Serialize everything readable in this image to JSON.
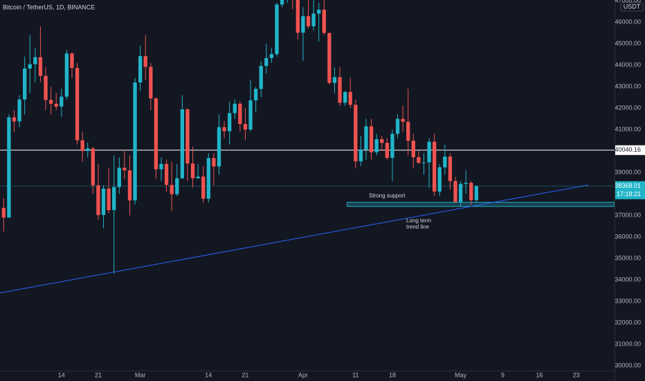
{
  "chart_data": {
    "type": "candlestick",
    "title": "Bitcoin / TetherUS, 1D, BINANCE",
    "currency": "USDT",
    "up_color": "#22b5c9",
    "down_color": "#ef5350",
    "open": [
      37350,
      36900,
      41570,
      41380,
      42400,
      43840,
      44040,
      44370,
      43500,
      42380,
      42200,
      42070,
      42530,
      44540,
      43870,
      40500,
      40000,
      40120,
      38400,
      37020,
      38250,
      37250,
      38320,
      39220,
      39100,
      37700,
      43190,
      44420,
      43920,
      42450,
      39150,
      39400,
      38420,
      37990,
      38730,
      41940,
      39420,
      38730,
      38810,
      37780,
      39670,
      39280,
      41110,
      40920,
      41760,
      42200,
      41260,
      41000,
      42360,
      42890,
      43960,
      44330,
      44510,
      46820,
      47120,
      47430,
      47060,
      45510,
      46280,
      45810,
      46400,
      46580,
      45500,
      43170,
      43440,
      42250,
      42750,
      42150,
      39520,
      40070,
      41150,
      39940,
      40550,
      40380,
      39680,
      40800,
      41500,
      41360,
      40480,
      39710,
      39450,
      39470,
      40430,
      38110,
      39240,
      39740,
      38600,
      37630,
      38470,
      38520,
      37710
    ],
    "high": [
      37800,
      41700,
      41900,
      42600,
      44400,
      45400,
      44800,
      45800,
      43900,
      43000,
      42700,
      42900,
      44700,
      44600,
      44100,
      40900,
      40400,
      40200,
      39400,
      38400,
      39200,
      39800,
      39700,
      40000,
      39800,
      43400,
      44900,
      45400,
      44100,
      42500,
      39700,
      39600,
      39500,
      39400,
      42600,
      42000,
      40200,
      39400,
      39300,
      39900,
      39900,
      41700,
      41400,
      42300,
      42400,
      42300,
      42000,
      43300,
      43000,
      44200,
      45000,
      44800,
      46900,
      48100,
      48200,
      47700,
      47600,
      46700,
      47200,
      47400,
      46900,
      47200,
      45500,
      43900,
      43900,
      42800,
      43400,
      42400,
      40700,
      41500,
      41500,
      40800,
      40700,
      40600,
      41000,
      41700,
      42100,
      42900,
      40800,
      40000,
      39900,
      40600,
      40800,
      39400,
      40300,
      39900,
      38800,
      38600,
      39100,
      38600,
      38400
    ],
    "low": [
      36250,
      36900,
      40900,
      41100,
      41700,
      42700,
      43200,
      43200,
      41900,
      41700,
      41900,
      41600,
      42400,
      43400,
      40300,
      39500,
      39700,
      38000,
      36800,
      36400,
      37100,
      34300,
      38000,
      38700,
      37000,
      37500,
      42800,
      43300,
      41900,
      38700,
      38600,
      38100,
      37200,
      37900,
      38700,
      38600,
      38300,
      38700,
      37600,
      37600,
      38400,
      38900,
      40600,
      40300,
      41500,
      40900,
      40500,
      40900,
      41800,
      42500,
      43600,
      44100,
      44400,
      46700,
      46900,
      46600,
      45200,
      44200,
      45700,
      45600,
      45100,
      45400,
      43100,
      42700,
      42100,
      42100,
      42000,
      39200,
      39300,
      39600,
      39600,
      39800,
      40000,
      39600,
      38600,
      40600,
      40900,
      39800,
      39200,
      39400,
      38900,
      38300,
      37900,
      37900,
      38900,
      38200,
      37600,
      37400,
      38000,
      37500,
      37600
    ],
    "close": [
      36900,
      41570,
      41380,
      42400,
      43840,
      44040,
      44370,
      43500,
      42380,
      42200,
      42070,
      42530,
      44540,
      43870,
      40500,
      40000,
      40120,
      38400,
      37020,
      38250,
      37250,
      38320,
      39220,
      39100,
      37700,
      43190,
      44420,
      43920,
      42450,
      39150,
      39400,
      38420,
      37990,
      38730,
      41940,
      39420,
      38730,
      38810,
      37780,
      39670,
      39280,
      41110,
      40920,
      41760,
      42200,
      41260,
      41000,
      42360,
      42890,
      43960,
      44330,
      44510,
      46820,
      47120,
      47430,
      47060,
      45510,
      46280,
      45810,
      46400,
      46580,
      45500,
      43170,
      43440,
      42250,
      42750,
      42150,
      39520,
      40070,
      41150,
      39940,
      40550,
      40380,
      39680,
      40800,
      41500,
      41360,
      40480,
      39710,
      39450,
      39470,
      40430,
      38110,
      39240,
      39740,
      38600,
      37630,
      38470,
      38520,
      37710,
      38368.01
    ],
    "countdown": "17:18:21",
    "hline": 40040.16,
    "support_zone": {
      "x": [
        65.4,
        116.3
      ],
      "y": [
        37420,
        37610
      ]
    },
    "trend_line": {
      "x": [
        -0.7,
        111.3
      ],
      "y": [
        33390,
        38420
      ]
    },
    "annotations": [
      "Strong support",
      "Long term",
      "trend line"
    ],
    "xlim": [
      -0.7,
      116.3
    ],
    "ylim": [
      29774,
      47032
    ],
    "xticks": [
      {
        "value": 11,
        "label": "14"
      },
      {
        "value": 18,
        "label": "21"
      },
      {
        "value": 26,
        "label": "Mar"
      },
      {
        "value": 39,
        "label": "14"
      },
      {
        "value": 46,
        "label": "21"
      },
      {
        "value": 57,
        "label": "Apr"
      },
      {
        "value": 67,
        "label": "11"
      },
      {
        "value": 74,
        "label": "18"
      },
      {
        "value": 87,
        "label": "May"
      },
      {
        "value": 95,
        "label": "9"
      },
      {
        "value": 102,
        "label": "16"
      },
      {
        "value": 109,
        "label": "23"
      }
    ],
    "yticks": [
      {
        "value": 30000,
        "label": "30000.00"
      },
      {
        "value": 31000,
        "label": "31000.00"
      },
      {
        "value": 32000,
        "label": "32000.00"
      },
      {
        "value": 33000,
        "label": "33000.00"
      },
      {
        "value": 34000,
        "label": "34000.00"
      },
      {
        "value": 35000,
        "label": "35000.00"
      },
      {
        "value": 36000,
        "label": "36000.00"
      },
      {
        "value": 37000,
        "label": "37000.00"
      },
      {
        "value": 38000,
        "label": "38000.00"
      },
      {
        "value": 39000,
        "label": "39000.00"
      },
      {
        "value": 40000,
        "label": "40000.00"
      },
      {
        "value": 41000,
        "label": "41000.00"
      },
      {
        "value": 42000,
        "label": "42000.00"
      },
      {
        "value": 43000,
        "label": "43000.00"
      },
      {
        "value": 44000,
        "label": "44000.00"
      },
      {
        "value": 45000,
        "label": "45000.00"
      },
      {
        "value": 46000,
        "label": "46000.00"
      },
      {
        "value": 47000,
        "label": "47000.00"
      }
    ],
    "grid": false
  }
}
